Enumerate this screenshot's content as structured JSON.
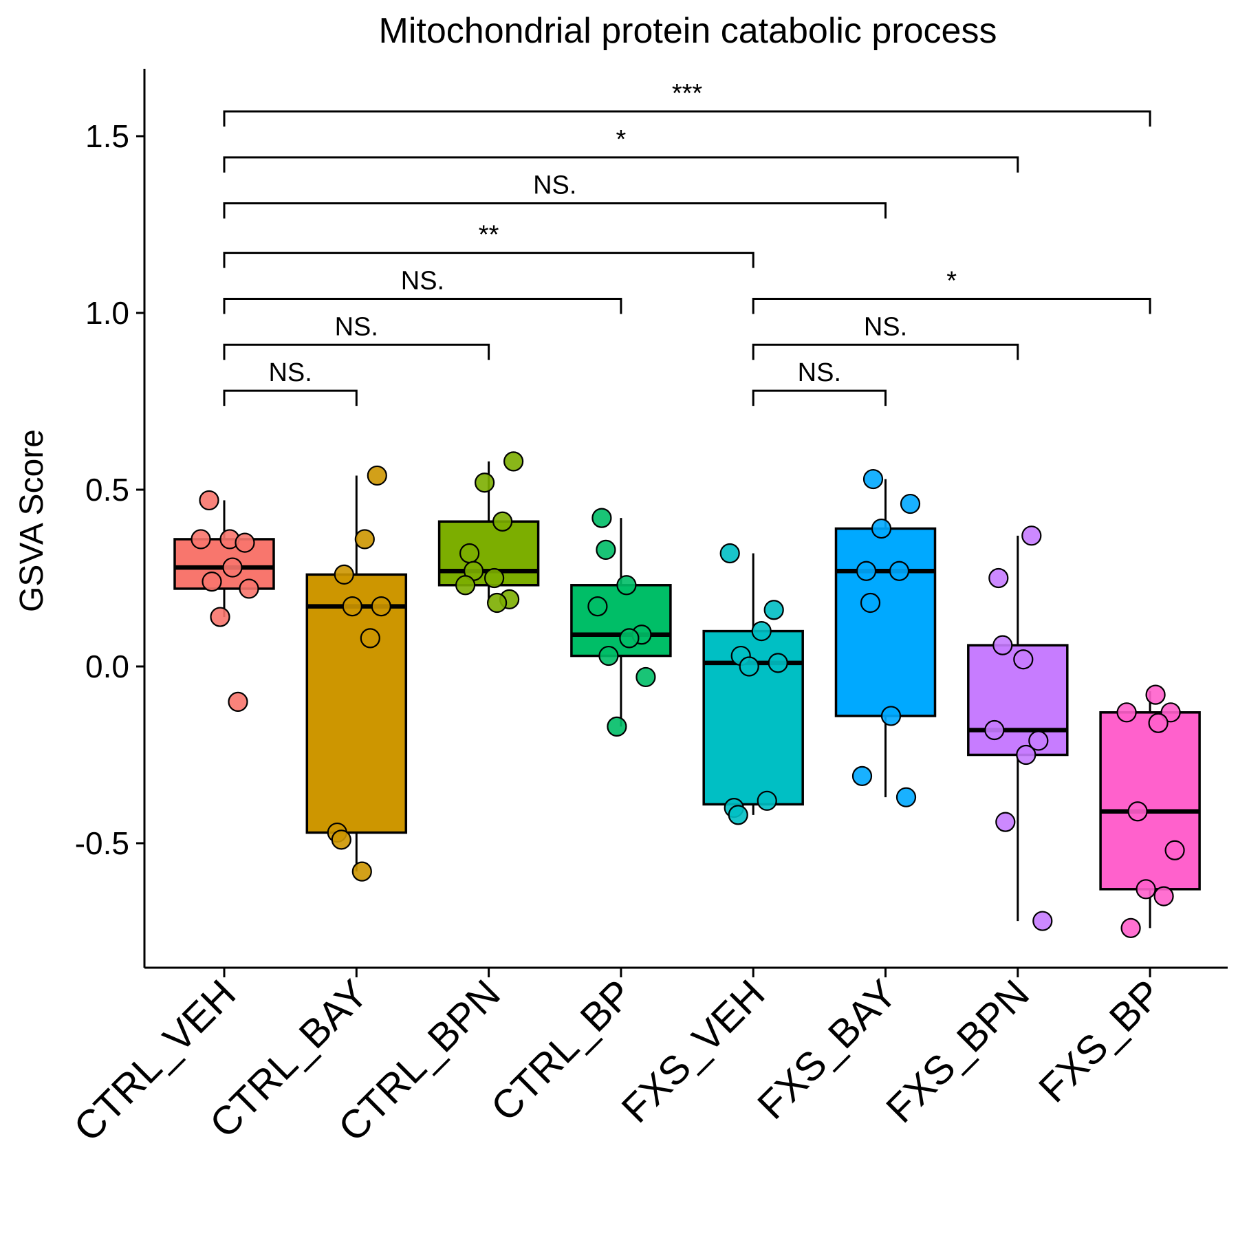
{
  "chart_data": {
    "type": "boxplot",
    "title": "Mitochondrial protein catabolic process",
    "xlabel": "",
    "ylabel": "GSVA Score",
    "ylim": [
      -0.83,
      1.68
    ],
    "yticks": [
      1.5,
      1.0,
      0.5,
      0.0,
      -0.5
    ],
    "ytick_labels": [
      "1.5",
      "1.0",
      "0.5",
      "0.0",
      "-0.5"
    ],
    "grid": false,
    "legend": "none",
    "categories": [
      "CTRL_VEH",
      "CTRL_BAY",
      "CTRL_BPN",
      "CTRL_BP",
      "FXS_VEH",
      "FXS_BAY",
      "FXS_BPN",
      "FXS_BP"
    ],
    "colors": [
      "#F8766D",
      "#CD9600",
      "#7CAE00",
      "#00BE67",
      "#00BFC4",
      "#00A9FF",
      "#C77CFF",
      "#FF61CC"
    ],
    "boxes": [
      {
        "lower_whisker": 0.14,
        "q1": 0.22,
        "median": 0.28,
        "q3": 0.36,
        "upper_whisker": 0.47,
        "outliers": [
          -0.1
        ]
      },
      {
        "lower_whisker": -0.58,
        "q1": -0.47,
        "median": 0.17,
        "q3": 0.26,
        "upper_whisker": 0.54,
        "outliers": []
      },
      {
        "lower_whisker": 0.18,
        "q1": 0.23,
        "median": 0.27,
        "q3": 0.41,
        "upper_whisker": 0.58,
        "outliers": []
      },
      {
        "lower_whisker": -0.17,
        "q1": 0.03,
        "median": 0.09,
        "q3": 0.23,
        "upper_whisker": 0.42,
        "outliers": []
      },
      {
        "lower_whisker": -0.42,
        "q1": -0.39,
        "median": 0.01,
        "q3": 0.1,
        "upper_whisker": 0.32,
        "outliers": []
      },
      {
        "lower_whisker": -0.37,
        "q1": -0.14,
        "median": 0.27,
        "q3": 0.39,
        "upper_whisker": 0.53,
        "outliers": []
      },
      {
        "lower_whisker": -0.72,
        "q1": -0.25,
        "median": -0.18,
        "q3": 0.06,
        "upper_whisker": 0.37,
        "outliers": []
      },
      {
        "lower_whisker": -0.74,
        "q1": -0.63,
        "median": -0.41,
        "q3": -0.13,
        "upper_whisker": -0.07,
        "outliers": []
      }
    ],
    "points": [
      [
        0.47,
        0.36,
        0.36,
        0.35,
        0.28,
        0.24,
        0.22,
        0.14,
        -0.1
      ],
      [
        0.54,
        0.36,
        0.26,
        0.17,
        0.17,
        0.08,
        -0.47,
        -0.49,
        -0.58
      ],
      [
        0.58,
        0.52,
        0.41,
        0.32,
        0.27,
        0.25,
        0.23,
        0.19,
        0.18
      ],
      [
        0.42,
        0.33,
        0.23,
        0.17,
        0.09,
        0.08,
        0.03,
        -0.03,
        -0.17
      ],
      [
        0.32,
        0.16,
        0.1,
        0.03,
        0.01,
        0.0,
        -0.38,
        -0.4,
        -0.42
      ],
      [
        0.53,
        0.46,
        0.39,
        0.27,
        0.27,
        0.18,
        -0.14,
        -0.31,
        -0.37
      ],
      [
        0.37,
        0.25,
        0.06,
        0.02,
        -0.18,
        -0.21,
        -0.25,
        -0.44,
        -0.72
      ],
      [
        -0.08,
        -0.13,
        -0.13,
        -0.16,
        -0.41,
        -0.52,
        -0.63,
        -0.65,
        -0.74
      ]
    ],
    "comparisons": [
      {
        "from": "CTRL_VEH",
        "to": "CTRL_BAY",
        "label": "NS.",
        "y": 0.78
      },
      {
        "from": "CTRL_VEH",
        "to": "CTRL_BPN",
        "label": "NS.",
        "y": 0.91
      },
      {
        "from": "CTRL_VEH",
        "to": "CTRL_BP",
        "label": "NS.",
        "y": 1.04
      },
      {
        "from": "CTRL_VEH",
        "to": "FXS_VEH",
        "label": "**",
        "y": 1.17
      },
      {
        "from": "CTRL_VEH",
        "to": "FXS_BAY",
        "label": "NS.",
        "y": 1.31
      },
      {
        "from": "CTRL_VEH",
        "to": "FXS_BPN",
        "label": "*",
        "y": 1.44
      },
      {
        "from": "CTRL_VEH",
        "to": "FXS_BP",
        "label": "***",
        "y": 1.57
      },
      {
        "from": "FXS_VEH",
        "to": "FXS_BAY",
        "label": "NS.",
        "y": 0.78
      },
      {
        "from": "FXS_VEH",
        "to": "FXS_BPN",
        "label": "NS.",
        "y": 0.91
      },
      {
        "from": "FXS_VEH",
        "to": "FXS_BP",
        "label": "*",
        "y": 1.04
      }
    ]
  }
}
